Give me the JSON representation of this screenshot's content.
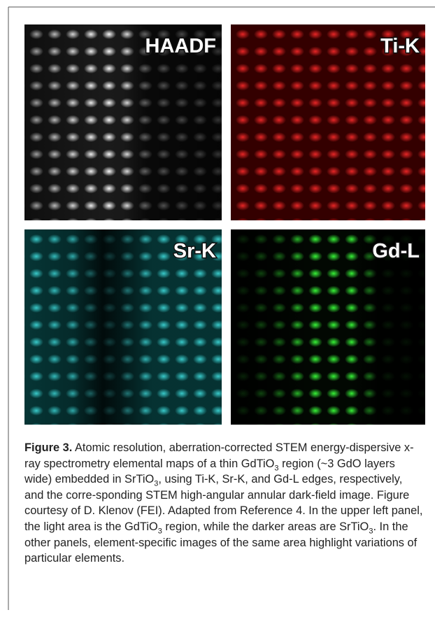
{
  "panels": [
    {
      "label": "HAADF"
    },
    {
      "label": "Ti-K"
    },
    {
      "label": "Sr-K"
    },
    {
      "label": "Gd-L"
    }
  ],
  "caption": {
    "label": "Figure 3.",
    "parts": [
      {
        "text": " Atomic resolution, aberration-corrected STEM energy-dispersive x-ray spectrometry elemental maps of a thin GdTiO",
        "sub": "3"
      },
      {
        "text": " region (~3 GdO layers wide) embedded in SrTiO",
        "sub": "3"
      },
      {
        "text": ", using Ti-K, Sr-K, and Gd-L edges, respectively, and the corre-sponding STEM high-angular annular dark-field image. Figure courtesy of D. Klenov (FEI). Adapted from Reference 4. In the upper left panel, the light area is the GdTiO",
        "sub": "3"
      },
      {
        "text": " region, while the darker areas are SrTiO",
        "sub": "3"
      },
      {
        "text": ". In the other panels, element-specific images of the same area highlight variations of particular elements."
      }
    ]
  }
}
